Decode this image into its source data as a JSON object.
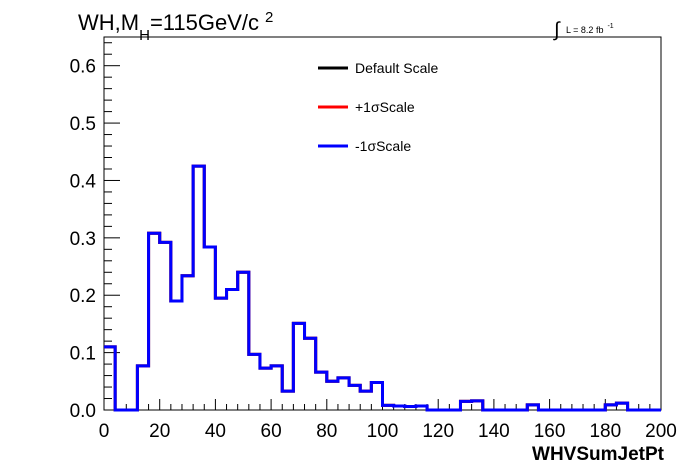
{
  "chart_data": {
    "type": "line",
    "style": "step-histogram",
    "title": {
      "main": "WH,M",
      "sub": "H",
      "rest": "=115GeV/c",
      "sup": "2"
    },
    "luminosity": {
      "symbol": "∫",
      "text": "L = 8.2 fb",
      "sup": "-1"
    },
    "xlabel": "WHVSumJetPt",
    "ylabel": "",
    "xlim": [
      0,
      200
    ],
    "ylim": [
      0,
      0.65
    ],
    "x_ticks": [
      0,
      20,
      40,
      60,
      80,
      100,
      120,
      140,
      160,
      180,
      200
    ],
    "y_ticks": [
      0,
      0.1,
      0.2,
      0.3,
      0.4,
      0.5,
      0.6
    ],
    "x_tick_labels": [
      "0",
      "20",
      "40",
      "60",
      "80",
      "100",
      "120",
      "140",
      "160",
      "180",
      "200"
    ],
    "y_tick_labels": [
      "0.0",
      "0.1",
      "0.2",
      "0.3",
      "0.4",
      "0.5",
      "0.6"
    ],
    "grid": false,
    "legend_position": "top-center",
    "bin_edges": [
      0,
      4,
      8,
      12,
      16,
      20,
      24,
      28,
      32,
      36,
      40,
      44,
      48,
      52,
      56,
      60,
      64,
      68,
      72,
      76,
      80,
      84,
      88,
      92,
      96,
      100,
      104,
      108,
      112,
      116,
      120,
      124,
      128,
      132,
      136,
      140,
      144,
      148,
      152,
      156,
      160,
      164,
      168,
      172,
      176,
      180,
      184,
      188,
      192,
      196,
      200
    ],
    "series": [
      {
        "name": "Default Scale",
        "color": "#000000",
        "values": [
          0.11,
          0.0,
          0.0,
          0.077,
          0.308,
          0.292,
          0.19,
          0.234,
          0.425,
          0.284,
          0.195,
          0.21,
          0.24,
          0.097,
          0.073,
          0.077,
          0.033,
          0.151,
          0.125,
          0.066,
          0.05,
          0.056,
          0.043,
          0.033,
          0.048,
          0.008,
          0.007,
          0.006,
          0.007,
          0.0,
          0.0,
          0.0,
          0.015,
          0.016,
          0.0,
          0.0,
          0.0,
          0.0,
          0.009,
          0.0,
          0.0,
          0.0,
          0.0,
          0.0,
          0.0,
          0.009,
          0.012,
          0.0,
          0.0,
          0.0
        ]
      },
      {
        "name": "+1σScale",
        "color": "#ff0000",
        "values": [
          0.11,
          0.0,
          0.0,
          0.077,
          0.308,
          0.292,
          0.19,
          0.234,
          0.425,
          0.284,
          0.195,
          0.21,
          0.24,
          0.097,
          0.073,
          0.077,
          0.033,
          0.151,
          0.125,
          0.066,
          0.05,
          0.056,
          0.043,
          0.033,
          0.048,
          0.008,
          0.007,
          0.006,
          0.007,
          0.0,
          0.0,
          0.0,
          0.015,
          0.016,
          0.0,
          0.0,
          0.0,
          0.0,
          0.009,
          0.0,
          0.0,
          0.0,
          0.0,
          0.0,
          0.0,
          0.009,
          0.012,
          0.0,
          0.0,
          0.0
        ]
      },
      {
        "name": "-1σScale",
        "color": "#0000ff",
        "values": [
          0.11,
          0.0,
          0.0,
          0.077,
          0.308,
          0.292,
          0.19,
          0.234,
          0.425,
          0.284,
          0.195,
          0.21,
          0.24,
          0.097,
          0.073,
          0.077,
          0.033,
          0.151,
          0.125,
          0.066,
          0.05,
          0.056,
          0.043,
          0.033,
          0.048,
          0.008,
          0.007,
          0.006,
          0.007,
          0.0,
          0.0,
          0.0,
          0.015,
          0.016,
          0.0,
          0.0,
          0.0,
          0.0,
          0.009,
          0.0,
          0.0,
          0.0,
          0.0,
          0.0,
          0.0,
          0.009,
          0.012,
          0.0,
          0.0,
          0.0
        ]
      }
    ]
  }
}
